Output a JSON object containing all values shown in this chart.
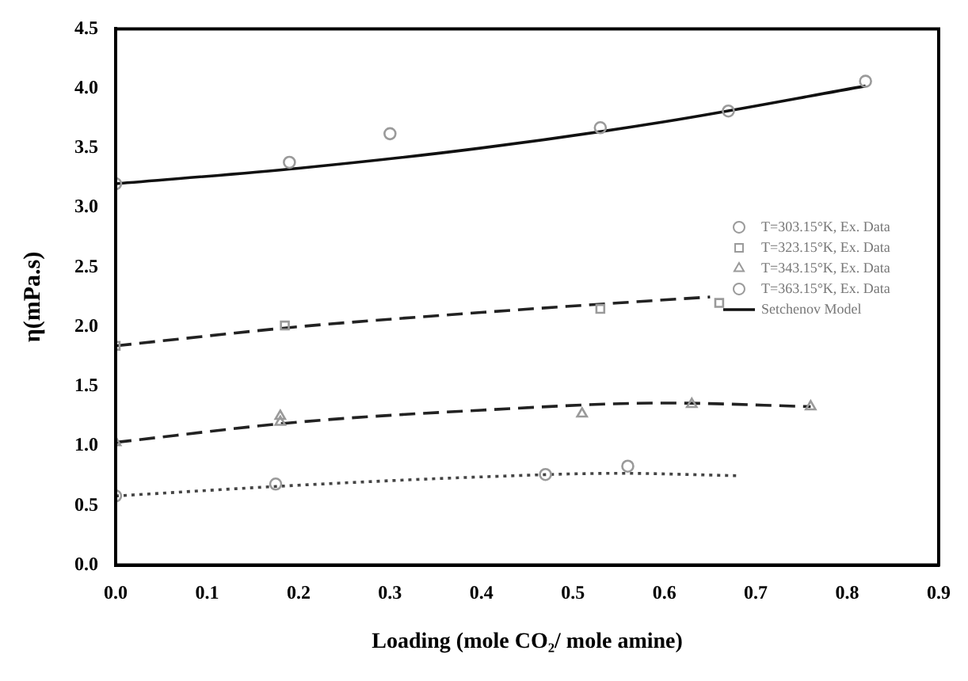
{
  "chart_data": {
    "type": "scatter",
    "xlabel": "Loading (mole CO₂/ mole amine)",
    "ylabel": "η(mPa.s)",
    "xlim": [
      0,
      0.9
    ],
    "xticks": [
      {
        "value": 0,
        "label": "0.0"
      },
      {
        "value": 0.1,
        "label": "0.1"
      },
      {
        "value": 0.2,
        "label": "0.2"
      },
      {
        "value": 0.3,
        "label": "0.3"
      },
      {
        "value": 0.4,
        "label": "0.4"
      },
      {
        "value": 0.5,
        "label": "0.5"
      },
      {
        "value": 0.6,
        "label": "0.6"
      },
      {
        "value": 0.7,
        "label": "0.7"
      },
      {
        "value": 0.8,
        "label": "0.8"
      },
      {
        "value": 0.9,
        "label": "0.9"
      }
    ],
    "ylim": [
      0,
      4.5
    ],
    "yticks": [
      {
        "value": 0,
        "label": "0.0"
      },
      {
        "value": 0.5,
        "label": "0.5"
      },
      {
        "value": 1,
        "label": "1.0"
      },
      {
        "value": 1.5,
        "label": "1.5"
      },
      {
        "value": 2,
        "label": "2.0"
      },
      {
        "value": 2.5,
        "label": "2.5"
      },
      {
        "value": 3,
        "label": "3.0"
      },
      {
        "value": 3.5,
        "label": "3.5"
      },
      {
        "value": 4,
        "label": "4.0"
      },
      {
        "value": 4.5,
        "label": "4.5"
      }
    ],
    "grid": false,
    "legend": "right",
    "series": [
      {
        "name": "T=303.15°K, Ex. Data",
        "type": "scatter",
        "marker": "circle",
        "color": "#9a9a9a",
        "x": [
          0,
          0.19,
          0.3,
          0.53,
          0.67,
          0.82
        ],
        "values": [
          3.2,
          3.38,
          3.62,
          3.67,
          3.81,
          4.06
        ]
      },
      {
        "name": "T=323.15°K, Ex. Data",
        "type": "scatter",
        "marker": "square",
        "color": "#9a9a9a",
        "x": [
          0,
          0.185,
          0.53,
          0.66
        ],
        "values": [
          1.84,
          2.01,
          2.15,
          2.2
        ]
      },
      {
        "name": "T=343.15°K, Ex. Data",
        "type": "scatter",
        "marker": "triangle",
        "color": "#9a9a9a",
        "x": [
          0,
          0.18,
          0.18,
          0.51,
          0.63,
          0.76
        ],
        "values": [
          1.03,
          1.25,
          1.2,
          1.27,
          1.35,
          1.33
        ]
      },
      {
        "name": "T=363.15°K, Ex. Data",
        "type": "scatter",
        "marker": "circle",
        "color": "#9a9a9a",
        "x": [
          0,
          0.175,
          0.47,
          0.56
        ],
        "values": [
          0.58,
          0.68,
          0.76,
          0.83
        ]
      },
      {
        "name": "Setchenov Model",
        "type": "line",
        "marker": "none",
        "line_style": "solid",
        "color": "#111111",
        "x": [
          0,
          0.2,
          0.4,
          0.6,
          0.82
        ],
        "values": [
          3.2,
          3.33,
          3.5,
          3.72,
          4.02
        ]
      },
      {
        "type": "line",
        "marker": "none",
        "line_style": "dashed",
        "color": "#222222",
        "x": [
          0,
          0.2,
          0.4,
          0.55,
          0.65
        ],
        "values": [
          1.84,
          2.0,
          2.12,
          2.2,
          2.25
        ]
      },
      {
        "type": "line",
        "marker": "none",
        "line_style": "dashed",
        "color": "#222222",
        "x": [
          0,
          0.2,
          0.4,
          0.6,
          0.76
        ],
        "values": [
          1.03,
          1.2,
          1.3,
          1.36,
          1.33
        ]
      },
      {
        "type": "line",
        "marker": "none",
        "line_style": "dotted",
        "color": "#444444",
        "x": [
          0,
          0.2,
          0.4,
          0.55,
          0.68
        ],
        "values": [
          0.58,
          0.67,
          0.74,
          0.77,
          0.75
        ]
      }
    ]
  }
}
